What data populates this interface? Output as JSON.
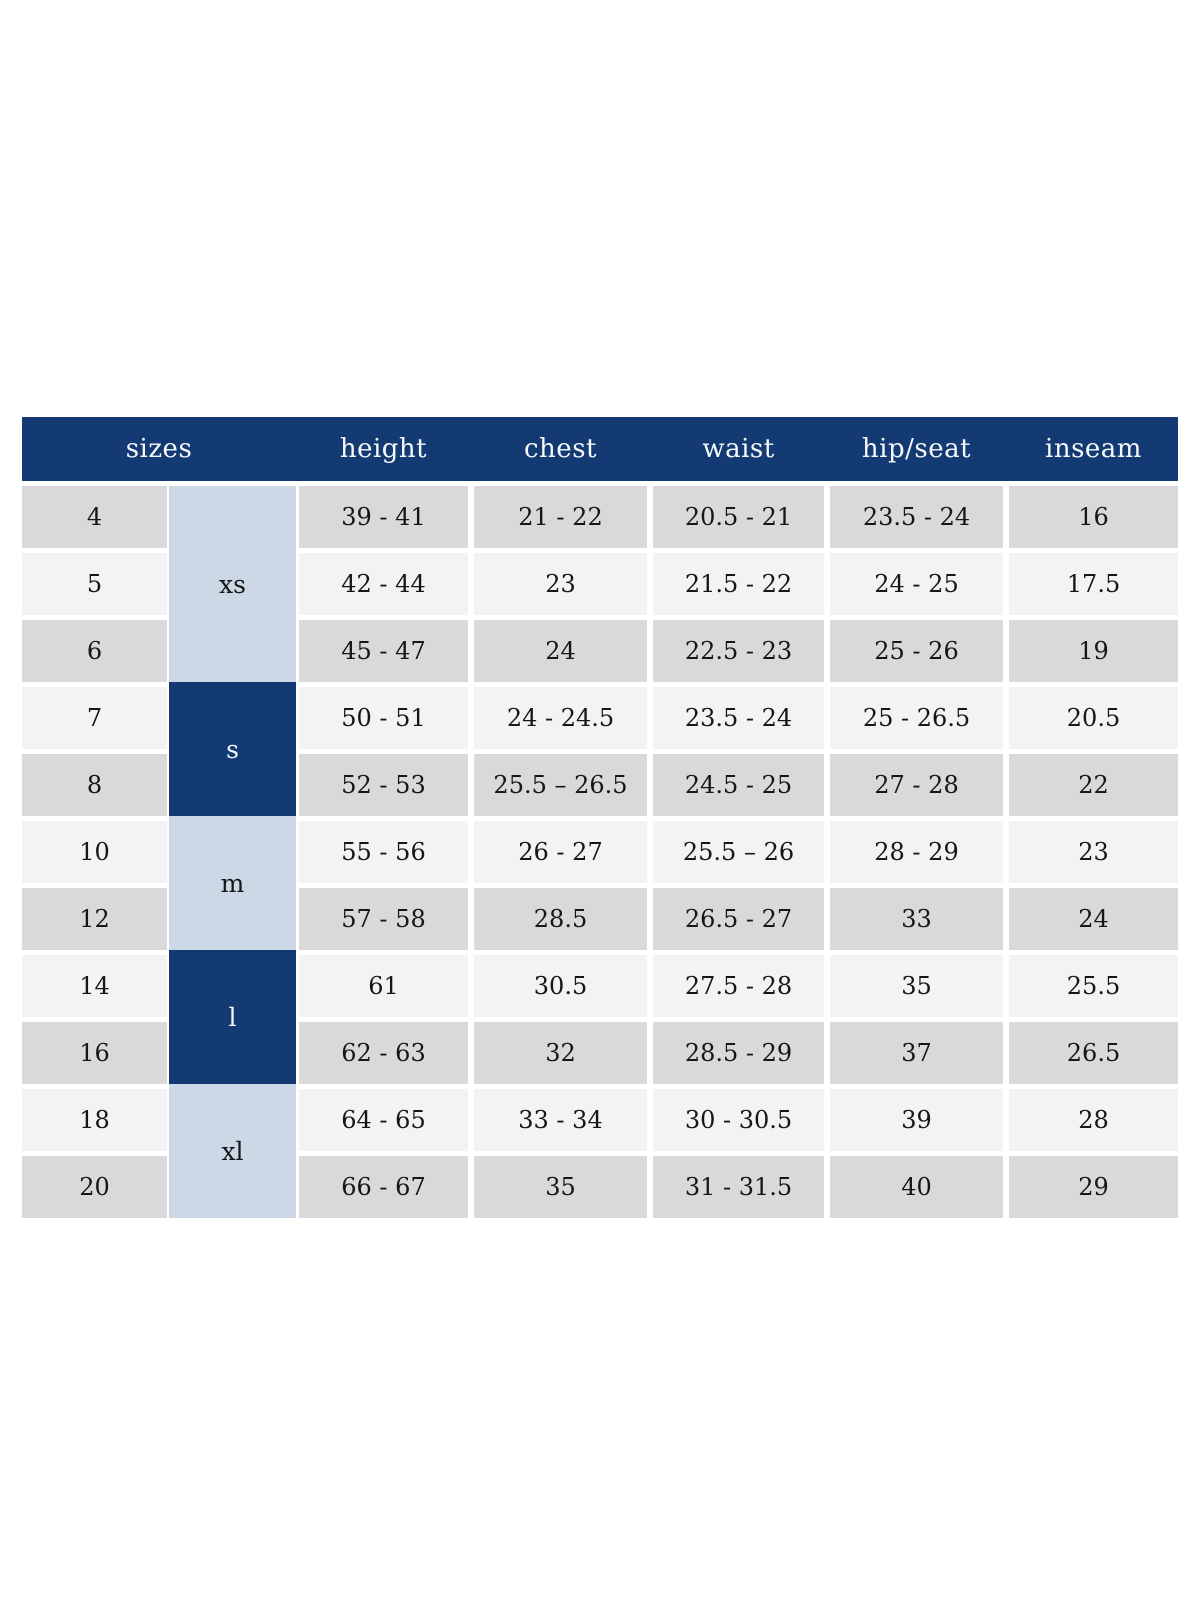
{
  "chart_data": {
    "type": "table",
    "columns": [
      "sizes",
      "height",
      "chest",
      "waist",
      "hip/seat",
      "inseam"
    ],
    "size_groups": [
      {
        "label": "xs",
        "span": 3,
        "variant": "light"
      },
      {
        "label": "s",
        "span": 2,
        "variant": "dark"
      },
      {
        "label": "m",
        "span": 2,
        "variant": "light"
      },
      {
        "label": "l",
        "span": 2,
        "variant": "dark"
      },
      {
        "label": "xl",
        "span": 2,
        "variant": "light"
      }
    ],
    "rows": [
      {
        "size": "4",
        "height": "39 - 41",
        "chest": "21 - 22",
        "waist": "20.5 - 21",
        "hip_seat": "23.5 - 24",
        "inseam": "16"
      },
      {
        "size": "5",
        "height": "42 - 44",
        "chest": "23",
        "waist": "21.5 - 22",
        "hip_seat": "24 - 25",
        "inseam": "17.5"
      },
      {
        "size": "6",
        "height": "45 - 47",
        "chest": "24",
        "waist": "22.5 - 23",
        "hip_seat": "25 - 26",
        "inseam": "19"
      },
      {
        "size": "7",
        "height": "50 - 51",
        "chest": "24 - 24.5",
        "waist": "23.5 - 24",
        "hip_seat": "25 - 26.5",
        "inseam": "20.5"
      },
      {
        "size": "8",
        "height": "52 - 53",
        "chest": "25.5 – 26.5",
        "waist": "24.5 - 25",
        "hip_seat": "27 - 28",
        "inseam": "22"
      },
      {
        "size": "10",
        "height": "55 - 56",
        "chest": "26 - 27",
        "waist": "25.5 – 26",
        "hip_seat": "28 - 29",
        "inseam": "23"
      },
      {
        "size": "12",
        "height": "57 - 58",
        "chest": "28.5",
        "waist": "26.5 - 27",
        "hip_seat": "33",
        "inseam": "24"
      },
      {
        "size": "14",
        "height": "61",
        "chest": "30.5",
        "waist": "27.5 - 28",
        "hip_seat": "35",
        "inseam": "25.5"
      },
      {
        "size": "16",
        "height": "62 - 63",
        "chest": "32",
        "waist": "28.5 - 29",
        "hip_seat": "37",
        "inseam": "26.5"
      },
      {
        "size": "18",
        "height": "64 - 65",
        "chest": "33 - 34",
        "waist": "30 - 30.5",
        "hip_seat": "39",
        "inseam": "28"
      },
      {
        "size": "20",
        "height": "66 - 67",
        "chest": "35",
        "waist": "31 - 31.5",
        "hip_seat": "40",
        "inseam": "29"
      }
    ],
    "colors": {
      "header_bg": "#133a72",
      "header_text": "#f6f8fb",
      "group_light_bg": "#ccd8e6",
      "group_dark_bg": "#133a72",
      "row_shade_a": "#d9d9d9",
      "row_shade_b": "#f3f3f3",
      "cell_text": "#161616",
      "page_bg": "#ffffff"
    }
  }
}
